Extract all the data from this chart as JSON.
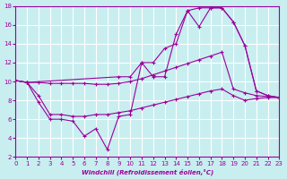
{
  "xlabel": "Windchill (Refroidissement éolien,°C)",
  "background_color": "#c8eef0",
  "line_color": "#9b009b",
  "xlim": [
    0,
    23
  ],
  "ylim": [
    2,
    18
  ],
  "xticks": [
    0,
    1,
    2,
    3,
    4,
    5,
    6,
    7,
    8,
    9,
    10,
    11,
    12,
    13,
    14,
    15,
    16,
    17,
    18,
    19,
    20,
    21,
    22,
    23
  ],
  "yticks": [
    2,
    4,
    6,
    8,
    10,
    12,
    14,
    16,
    18
  ],
  "grid_color": "#ffffff",
  "line1_x": [
    0,
    1,
    2,
    3,
    4,
    5,
    6,
    7,
    8,
    9,
    10,
    11,
    12,
    13,
    14,
    15,
    16,
    17,
    18,
    19,
    20,
    21,
    22,
    23
  ],
  "line1_y": [
    10.1,
    9.9,
    9.9,
    9.8,
    9.8,
    9.8,
    9.8,
    9.7,
    9.7,
    9.8,
    10.0,
    10.3,
    10.7,
    11.1,
    11.5,
    11.9,
    12.3,
    12.7,
    13.1,
    9.2,
    8.8,
    8.5,
    8.4,
    8.3
  ],
  "line2_x": [
    0,
    1,
    2,
    3,
    4,
    5,
    6,
    7,
    8,
    9,
    10,
    11,
    12,
    13,
    14,
    15,
    16,
    17,
    18,
    19,
    20,
    21,
    22,
    23
  ],
  "line2_y": [
    10.1,
    9.9,
    8.5,
    6.5,
    6.5,
    6.3,
    6.3,
    6.5,
    6.5,
    6.7,
    6.9,
    7.2,
    7.5,
    7.8,
    8.1,
    8.4,
    8.7,
    9.0,
    9.2,
    8.5,
    8.0,
    8.2,
    8.3,
    8.3
  ],
  "line3_x": [
    0,
    1,
    2,
    3,
    4,
    5,
    6,
    7,
    8,
    9,
    10,
    11,
    12,
    13,
    14,
    15,
    16,
    17,
    18,
    19,
    20,
    21,
    22,
    23
  ],
  "line3_y": [
    10.1,
    9.9,
    7.8,
    6.0,
    6.0,
    5.8,
    4.2,
    5.0,
    2.8,
    6.3,
    6.5,
    12.0,
    10.5,
    10.5,
    15.0,
    17.5,
    15.8,
    17.8,
    17.8,
    16.3,
    13.8,
    9.0,
    8.5,
    8.3
  ],
  "line4_x": [
    0,
    1,
    9,
    10,
    11,
    12,
    13,
    14,
    15,
    16,
    17,
    18,
    19,
    20,
    21,
    22,
    23
  ],
  "line4_y": [
    10.1,
    9.9,
    10.5,
    10.5,
    12.0,
    12.0,
    13.5,
    14.0,
    17.5,
    17.8,
    17.8,
    17.8,
    16.3,
    13.8,
    9.0,
    8.5,
    8.3
  ]
}
